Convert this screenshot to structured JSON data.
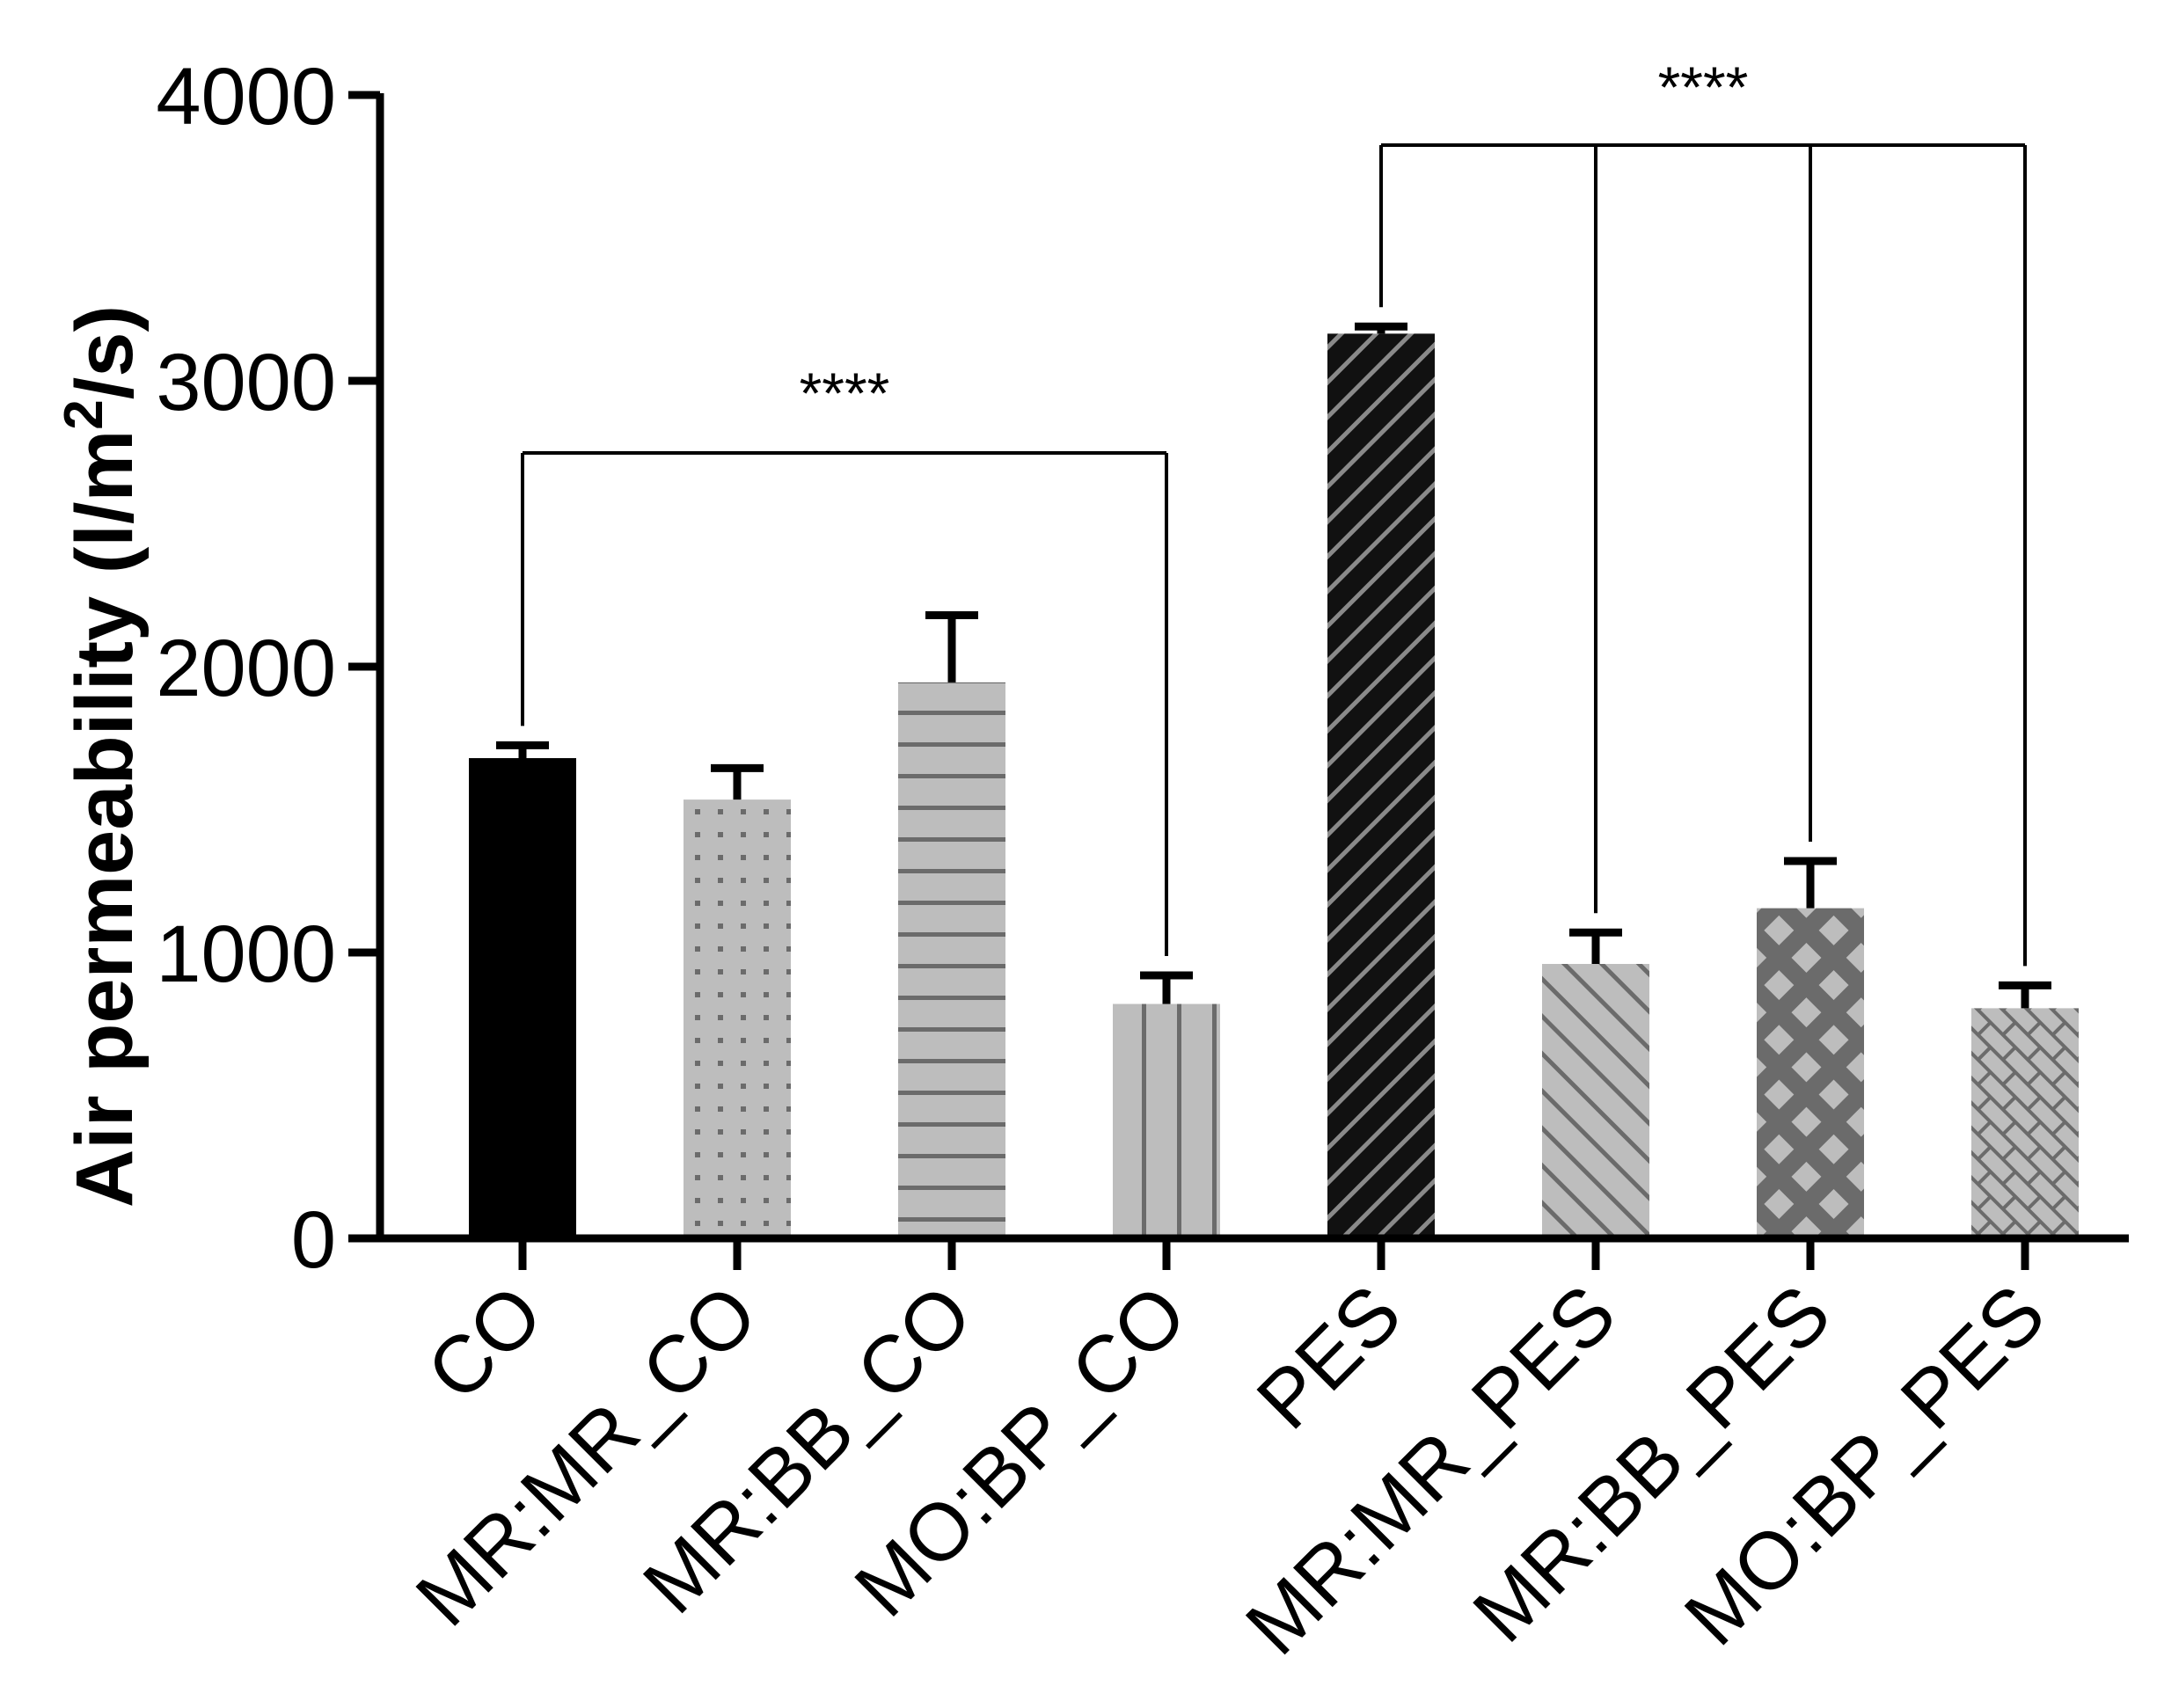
{
  "chart_data": {
    "type": "bar",
    "title": "",
    "xlabel": "",
    "ylabel": {
      "main": "Air permeability (l/m",
      "superscript": "2",
      "tail": "/s)"
    },
    "ylim": [
      0,
      4000
    ],
    "yticks": [
      0,
      1000,
      2000,
      3000,
      4000
    ],
    "categories": [
      "CO",
      "MR:MR_CO",
      "MR:BB_CO",
      "MO:BP_CO",
      "PES",
      "MR:MR_PES",
      "MR:BB_PES",
      "MO:BP_PES"
    ],
    "values": [
      1680,
      1535,
      1945,
      820,
      3165,
      960,
      1155,
      805
    ],
    "errors": [
      45,
      110,
      235,
      100,
      25,
      110,
      165,
      80
    ],
    "patterns": [
      "solid-black",
      "dots",
      "horizontal-lines",
      "vertical-lines",
      "diagonal-dark",
      "diagonal-backslash",
      "diamond-lattice",
      "basket-weave"
    ],
    "annotations": [
      {
        "label": "****",
        "from": "CO",
        "to": [
          "MO:BP_CO"
        ]
      },
      {
        "label": "****",
        "from": "PES",
        "to": [
          "MR:MR_PES",
          "MR:BB_PES",
          "MO:BP_PES"
        ]
      }
    ],
    "colors": {
      "bar_gray": "#bdbdbd",
      "pattern_line": "#6b6b6b",
      "axis": "#000000"
    }
  }
}
